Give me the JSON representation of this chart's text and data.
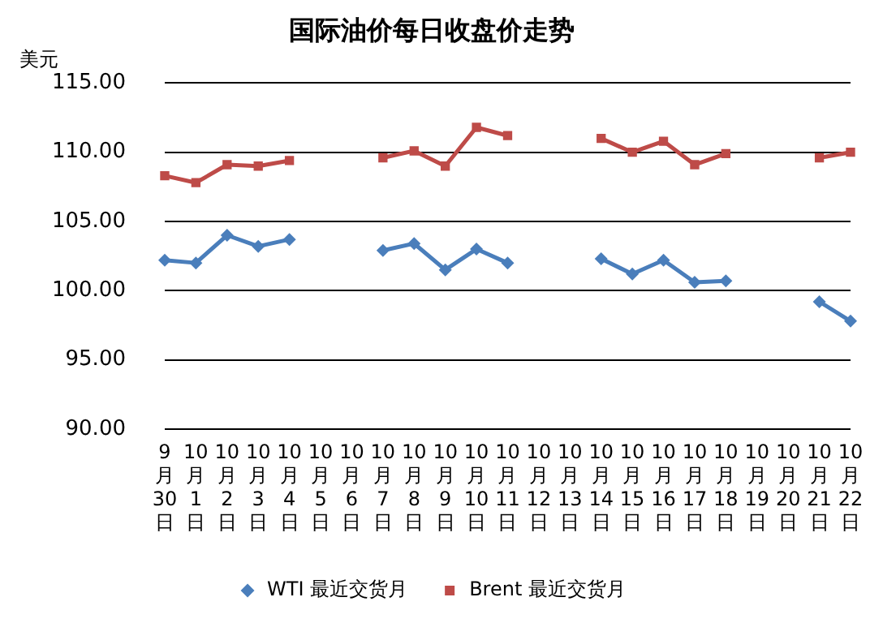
{
  "chart_data": {
    "type": "line",
    "title": "国际油价每日收盘价走势",
    "ylabel": "美元",
    "categories": [
      "9月30日",
      "10月1日",
      "10月2日",
      "10月3日",
      "10月4日",
      "10月5日",
      "10月6日",
      "10月7日",
      "10月8日",
      "10月9日",
      "10月10日",
      "10月11日",
      "10月12日",
      "10月13日",
      "10月14日",
      "10月15日",
      "10月16日",
      "10月17日",
      "10月18日",
      "10月19日",
      "10月20日",
      "10月21日",
      "10月22日"
    ],
    "series": [
      {
        "name": "WTI 最近交货月",
        "color": "#4a7ebb",
        "marker": "diamond",
        "values": [
          102.2,
          102.0,
          104.0,
          103.2,
          103.7,
          null,
          null,
          102.9,
          103.4,
          101.5,
          103.0,
          102.0,
          null,
          null,
          102.3,
          101.2,
          102.2,
          100.6,
          100.7,
          null,
          null,
          99.2,
          97.8
        ]
      },
      {
        "name": "Brent 最近交货月",
        "color": "#be4b48",
        "marker": "square",
        "values": [
          108.3,
          107.8,
          109.1,
          109.0,
          109.4,
          null,
          null,
          109.6,
          110.1,
          109.0,
          111.8,
          111.2,
          null,
          null,
          111.0,
          110.0,
          110.8,
          109.1,
          109.9,
          null,
          null,
          109.6,
          110.0
        ]
      }
    ],
    "ylim": [
      90,
      115
    ],
    "yticks": [
      {
        "value": 90,
        "label": "90.00"
      },
      {
        "value": 95,
        "label": "95.00"
      },
      {
        "value": 100,
        "label": "100.00"
      },
      {
        "value": 105,
        "label": "105.00"
      },
      {
        "value": 110,
        "label": "110.00"
      },
      {
        "value": 115,
        "label": "115.00"
      }
    ],
    "grid": "y",
    "legend": "bottom",
    "line_style": "solid"
  }
}
